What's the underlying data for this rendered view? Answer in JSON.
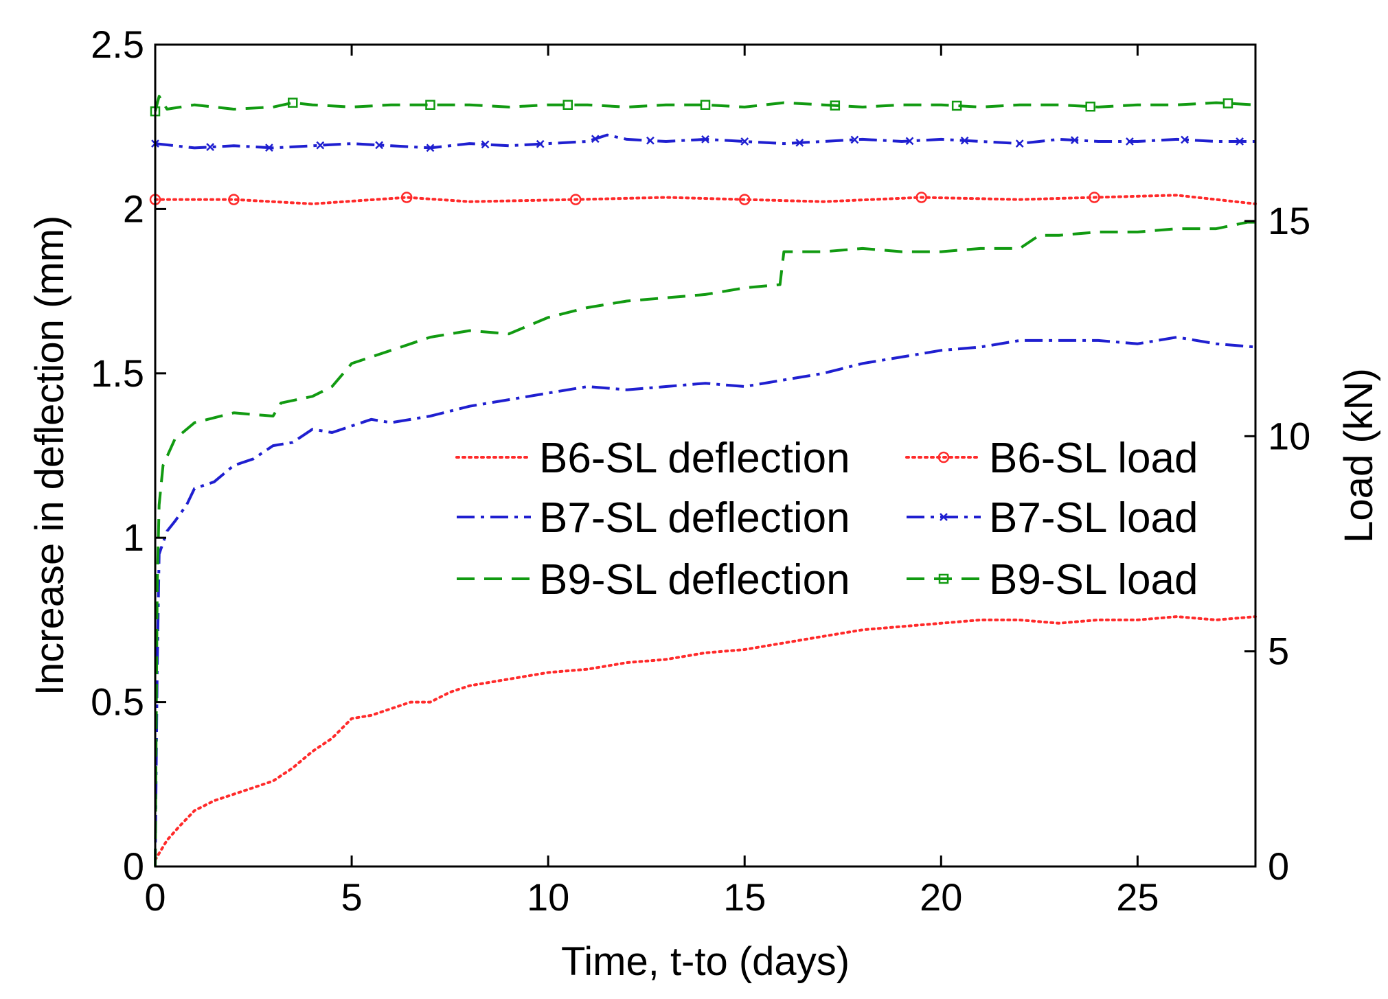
{
  "chart_data": {
    "type": "line",
    "xlabel": "Time, t-to (days)",
    "ylabel": "Increase in deflection (mm)",
    "y2label": "Load (kN)",
    "xlim": [
      0,
      28
    ],
    "ylim": [
      0,
      2.5
    ],
    "y2lim": [
      0,
      19.1
    ],
    "xticks": [
      "0",
      "5",
      "10",
      "15",
      "20",
      "25"
    ],
    "yticks": [
      "0",
      "0.5",
      "1",
      "1.5",
      "2",
      "2.5"
    ],
    "y2ticks": [
      "0",
      "5",
      "10",
      "15"
    ],
    "grid": false,
    "legend_position": "center-right",
    "colors": {
      "b6": "#ff2a2a",
      "b7": "#1f1fd0",
      "b9": "#119a11"
    },
    "series": [
      {
        "name": "B6-SL deflection",
        "axis": "left",
        "color": "#ff2a2a",
        "dash": "dotted",
        "x": [
          0,
          0.3,
          0.6,
          1,
          1.5,
          2,
          2.5,
          3,
          3.5,
          4,
          4.5,
          5,
          5.5,
          6,
          6.5,
          7,
          7.5,
          8,
          9,
          10,
          11,
          12,
          13,
          14,
          15,
          16,
          17,
          18,
          19,
          20,
          21,
          22,
          23,
          24,
          25,
          26,
          27,
          28
        ],
        "y": [
          0.02,
          0.08,
          0.12,
          0.17,
          0.2,
          0.22,
          0.24,
          0.26,
          0.3,
          0.35,
          0.39,
          0.45,
          0.46,
          0.48,
          0.5,
          0.5,
          0.53,
          0.55,
          0.57,
          0.59,
          0.6,
          0.62,
          0.63,
          0.65,
          0.66,
          0.68,
          0.7,
          0.72,
          0.73,
          0.74,
          0.75,
          0.75,
          0.74,
          0.75,
          0.75,
          0.76,
          0.75,
          0.76
        ]
      },
      {
        "name": "B7-SL deflection",
        "axis": "left",
        "color": "#1f1fd0",
        "dash": "dashdot",
        "x": [
          0,
          0.05,
          0.1,
          0.3,
          0.5,
          0.8,
          1,
          1.5,
          2,
          2.5,
          3,
          3.5,
          4,
          4.5,
          5,
          5.5,
          6,
          7,
          8,
          9,
          10,
          11,
          12,
          13,
          14,
          15,
          16,
          17,
          18,
          19,
          20,
          21,
          22,
          23,
          24,
          25,
          26,
          27,
          28
        ],
        "y": [
          0,
          0.6,
          0.95,
          1.02,
          1.05,
          1.1,
          1.15,
          1.17,
          1.22,
          1.24,
          1.28,
          1.29,
          1.33,
          1.32,
          1.34,
          1.36,
          1.35,
          1.37,
          1.4,
          1.42,
          1.44,
          1.46,
          1.45,
          1.46,
          1.47,
          1.46,
          1.48,
          1.5,
          1.53,
          1.55,
          1.57,
          1.58,
          1.6,
          1.6,
          1.6,
          1.59,
          1.61,
          1.59,
          1.58
        ]
      },
      {
        "name": "B9-SL deflection",
        "axis": "left",
        "color": "#119a11",
        "dash": "dashed",
        "x": [
          0,
          0.05,
          0.1,
          0.2,
          0.5,
          1,
          2,
          3,
          3.2,
          4,
          4.5,
          5,
          6,
          7,
          8,
          9,
          10,
          11,
          12,
          13,
          14,
          15,
          15.9,
          16,
          17,
          18,
          19,
          20,
          21,
          22,
          22.5,
          23,
          24,
          25,
          26,
          27,
          27.8,
          28
        ],
        "y": [
          0,
          0.85,
          1.1,
          1.22,
          1.3,
          1.35,
          1.38,
          1.37,
          1.41,
          1.43,
          1.46,
          1.53,
          1.57,
          1.61,
          1.63,
          1.62,
          1.67,
          1.7,
          1.72,
          1.73,
          1.74,
          1.76,
          1.77,
          1.87,
          1.87,
          1.88,
          1.87,
          1.87,
          1.88,
          1.88,
          1.92,
          1.92,
          1.93,
          1.93,
          1.94,
          1.94,
          1.96,
          1.96
        ]
      },
      {
        "name": "B6-SL load",
        "axis": "right",
        "color": "#ff2a2a",
        "dash": "dotted",
        "marker": "circle",
        "x": [
          0,
          2,
          4,
          6.4,
          8,
          10.7,
          13,
          15,
          17,
          19.5,
          22,
          23.9,
          26,
          28
        ],
        "y": [
          15.5,
          15.5,
          15.4,
          15.55,
          15.45,
          15.5,
          15.55,
          15.5,
          15.45,
          15.55,
          15.5,
          15.55,
          15.6,
          15.4
        ],
        "marker_x": [
          0,
          2,
          6.4,
          10.7,
          15,
          19.5,
          23.9
        ]
      },
      {
        "name": "B7-SL load",
        "axis": "right",
        "color": "#1f1fd0",
        "dash": "dashdot",
        "marker": "x",
        "x": [
          0,
          1,
          2,
          3,
          4,
          5,
          6,
          7,
          8,
          9,
          10,
          11,
          11.5,
          12,
          13,
          14,
          15,
          16,
          17,
          18,
          19,
          20,
          21,
          22,
          23,
          24,
          25,
          26,
          27,
          28
        ],
        "y": [
          16.8,
          16.7,
          16.75,
          16.7,
          16.75,
          16.8,
          16.75,
          16.7,
          16.8,
          16.75,
          16.8,
          16.85,
          17.0,
          16.9,
          16.85,
          16.9,
          16.85,
          16.8,
          16.85,
          16.9,
          16.85,
          16.9,
          16.85,
          16.8,
          16.9,
          16.85,
          16.85,
          16.9,
          16.85,
          16.85
        ],
        "marker_x": [
          0,
          1.4,
          2.9,
          4.2,
          5.7,
          7,
          8.4,
          9.8,
          11.2,
          12.6,
          14,
          15,
          16.4,
          17.8,
          19.2,
          20.6,
          22,
          23.4,
          24.8,
          26.2,
          27.6
        ]
      },
      {
        "name": "B9-SL load",
        "axis": "right",
        "color": "#119a11",
        "dash": "dashed",
        "marker": "square",
        "x": [
          0,
          0.1,
          0.3,
          1,
          2,
          3,
          3.5,
          4,
          5,
          6,
          7,
          8,
          9,
          10,
          11,
          12,
          13,
          14,
          15,
          16,
          17,
          18,
          19,
          20,
          21,
          22,
          23,
          24,
          25,
          26,
          27,
          28
        ],
        "y": [
          17.55,
          17.9,
          17.6,
          17.7,
          17.6,
          17.65,
          17.75,
          17.7,
          17.65,
          17.7,
          17.7,
          17.7,
          17.65,
          17.7,
          17.7,
          17.65,
          17.7,
          17.7,
          17.65,
          17.75,
          17.7,
          17.65,
          17.7,
          17.7,
          17.65,
          17.7,
          17.7,
          17.65,
          17.7,
          17.7,
          17.75,
          17.7
        ],
        "marker_x": [
          0,
          3.5,
          7,
          10.5,
          14,
          17.3,
          20.4,
          23.8,
          27.3
        ]
      }
    ],
    "legend": [
      {
        "label": "B6-SL deflection",
        "series": 0
      },
      {
        "label": "B7-SL deflection",
        "series": 1
      },
      {
        "label": "B9-SL deflection",
        "series": 2
      },
      {
        "label": "B6-SL load",
        "series": 3
      },
      {
        "label": "B7-SL load",
        "series": 4
      },
      {
        "label": "B9-SL load",
        "series": 5
      }
    ]
  }
}
